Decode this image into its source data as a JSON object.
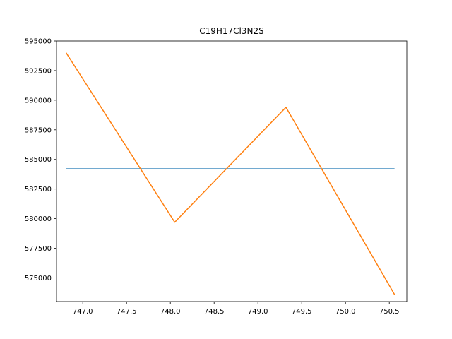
{
  "chart_data": {
    "type": "line",
    "title": "C19H17Cl3N2S",
    "xlabel": "",
    "ylabel": "",
    "xlim": [
      746.7,
      750.7
    ],
    "ylim": [
      573000,
      595000
    ],
    "grid": false,
    "x_ticks": [
      {
        "value": 747.0,
        "label": "747.0"
      },
      {
        "value": 747.5,
        "label": "747.5"
      },
      {
        "value": 748.0,
        "label": "748.0"
      },
      {
        "value": 748.5,
        "label": "748.5"
      },
      {
        "value": 749.0,
        "label": "749.0"
      },
      {
        "value": 749.5,
        "label": "749.5"
      },
      {
        "value": 750.0,
        "label": "750.0"
      },
      {
        "value": 750.5,
        "label": "750.5"
      }
    ],
    "y_ticks": [
      {
        "value": 575000,
        "label": "575000"
      },
      {
        "value": 577500,
        "label": "577500"
      },
      {
        "value": 580000,
        "label": "580000"
      },
      {
        "value": 582500,
        "label": "582500"
      },
      {
        "value": 585000,
        "label": "585000"
      },
      {
        "value": 587500,
        "label": "587500"
      },
      {
        "value": 590000,
        "label": "590000"
      },
      {
        "value": 592500,
        "label": "592500"
      },
      {
        "value": 595000,
        "label": "595000"
      }
    ],
    "series": [
      {
        "color": "#1f77b4",
        "x": [
          746.81,
          750.56
        ],
        "y": [
          584200,
          584200
        ]
      },
      {
        "color": "#ff7f0e",
        "x": [
          746.81,
          748.05,
          749.32,
          750.56
        ],
        "y": [
          594000,
          579700,
          589400,
          573600
        ]
      }
    ]
  }
}
